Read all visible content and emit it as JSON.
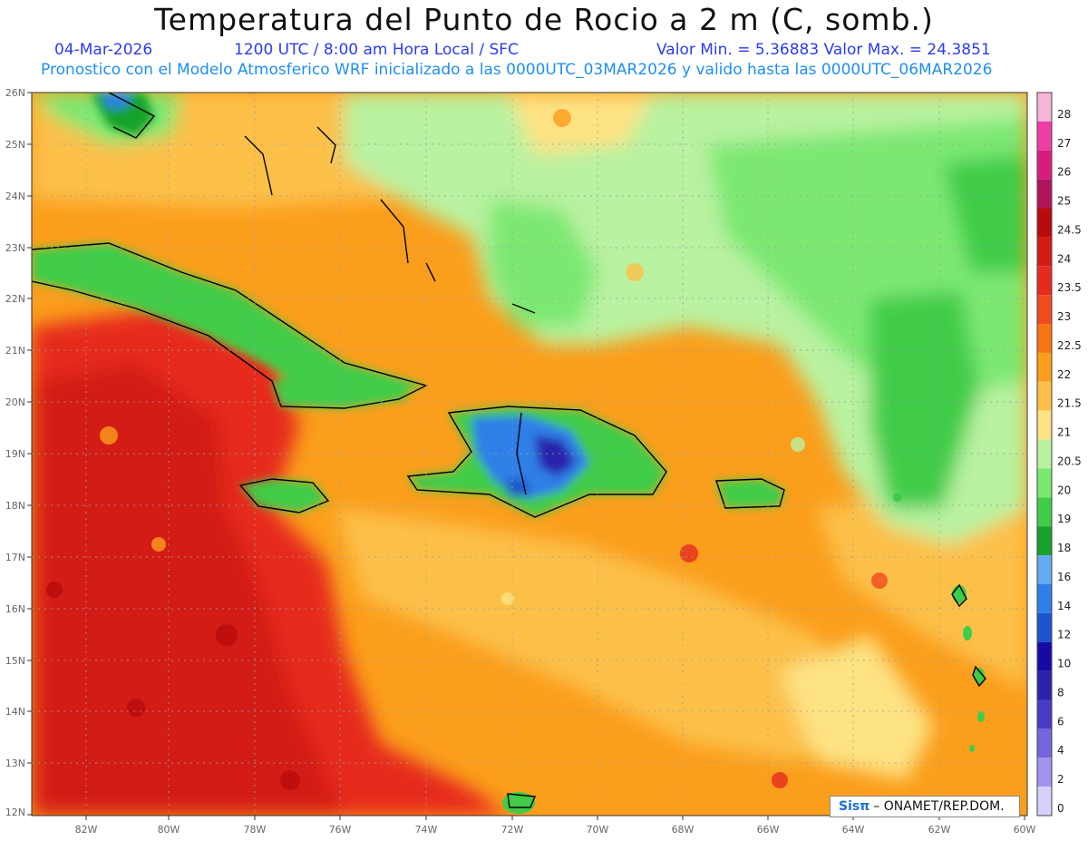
{
  "header": {
    "title": "Temperatura del Punto de Rocio a 2 m (C, somb.)",
    "date": "04-Mar-2026",
    "time_info": "1200 UTC / 8:00 am Hora Local / SFC",
    "min_max": "Valor Min. = 5.36883  Valor Max. = 24.3851",
    "model_info": "Pronostico con el Modelo Atmosferico WRF inicializado a las 0000UTC_03MAR2026 y valido hasta las  0000UTC_06MAR2026"
  },
  "map": {
    "lat_labels": [
      "26N",
      "25N",
      "24N",
      "23N",
      "22N",
      "21N",
      "20N",
      "19N",
      "18N",
      "17N",
      "16N",
      "15N",
      "14N",
      "13N",
      "12N"
    ],
    "lon_labels": [
      "82W",
      "80W",
      "78W",
      "76W",
      "74W",
      "72W",
      "70W",
      "68W",
      "66W",
      "64W",
      "62W",
      "60W"
    ]
  },
  "legend": {
    "levels": [
      {
        "label": "28",
        "color": "#f7b6d8"
      },
      {
        "label": "27",
        "color": "#ee3ea3"
      },
      {
        "label": "26",
        "color": "#d81c7d"
      },
      {
        "label": "25",
        "color": "#b01458"
      },
      {
        "label": "24.5",
        "color": "#b80b0b"
      },
      {
        "label": "24",
        "color": "#d41a14"
      },
      {
        "label": "23.5",
        "color": "#e62b1e"
      },
      {
        "label": "23",
        "color": "#f04a1e"
      },
      {
        "label": "22.5",
        "color": "#f77514"
      },
      {
        "label": "22",
        "color": "#fb9e1b"
      },
      {
        "label": "21.5",
        "color": "#fcc04a"
      },
      {
        "label": "21",
        "color": "#fde283"
      },
      {
        "label": "20.5",
        "color": "#b9f2a0"
      },
      {
        "label": "20",
        "color": "#7ce872"
      },
      {
        "label": "19",
        "color": "#40cc48"
      },
      {
        "label": "18",
        "color": "#17a22c"
      },
      {
        "label": "16",
        "color": "#64aaf2"
      },
      {
        "label": "14",
        "color": "#2f7fe8"
      },
      {
        "label": "12",
        "color": "#1b54cc"
      },
      {
        "label": "10",
        "color": "#160aa6"
      },
      {
        "label": "8",
        "color": "#2b22ac"
      },
      {
        "label": "6",
        "color": "#4a3bc6"
      },
      {
        "label": "4",
        "color": "#7565dc"
      },
      {
        "label": "2",
        "color": "#a293ee"
      },
      {
        "label": "0",
        "color": "#d5d1fa"
      }
    ]
  },
  "credit": {
    "logo": "Sisπ",
    "text": "– ONAMET/REP.DOM."
  }
}
